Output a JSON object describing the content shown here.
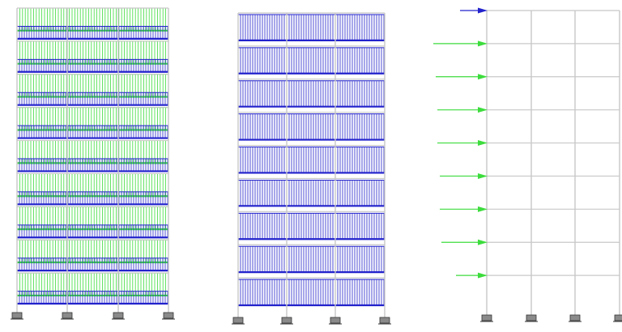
{
  "frame": {
    "bays": 3,
    "stories": 9
  },
  "panels": [
    {
      "id": "combined-gravity-loads",
      "loads": [
        "distributed-load-type-a",
        "distributed-load-type-b"
      ],
      "supports": 4
    },
    {
      "id": "uniform-distributed-load",
      "loads": [
        "distributed-load-type-b"
      ],
      "supports": 4
    },
    {
      "id": "lateral-point-loads",
      "loads": [
        "point-load-type-a",
        "point-load-type-b"
      ],
      "supports": 4,
      "lateral_load_levels": 9
    }
  ],
  "colors": {
    "frame_member": "#c8c8c8",
    "load_type_a": "#3ddc3d",
    "load_type_b": "#2222cc",
    "support_fill": "#8a8a8a",
    "support_edge": "#333333"
  },
  "icons": {
    "support": "fixed-support-icon",
    "lateral_load": "arrow-right-icon"
  }
}
